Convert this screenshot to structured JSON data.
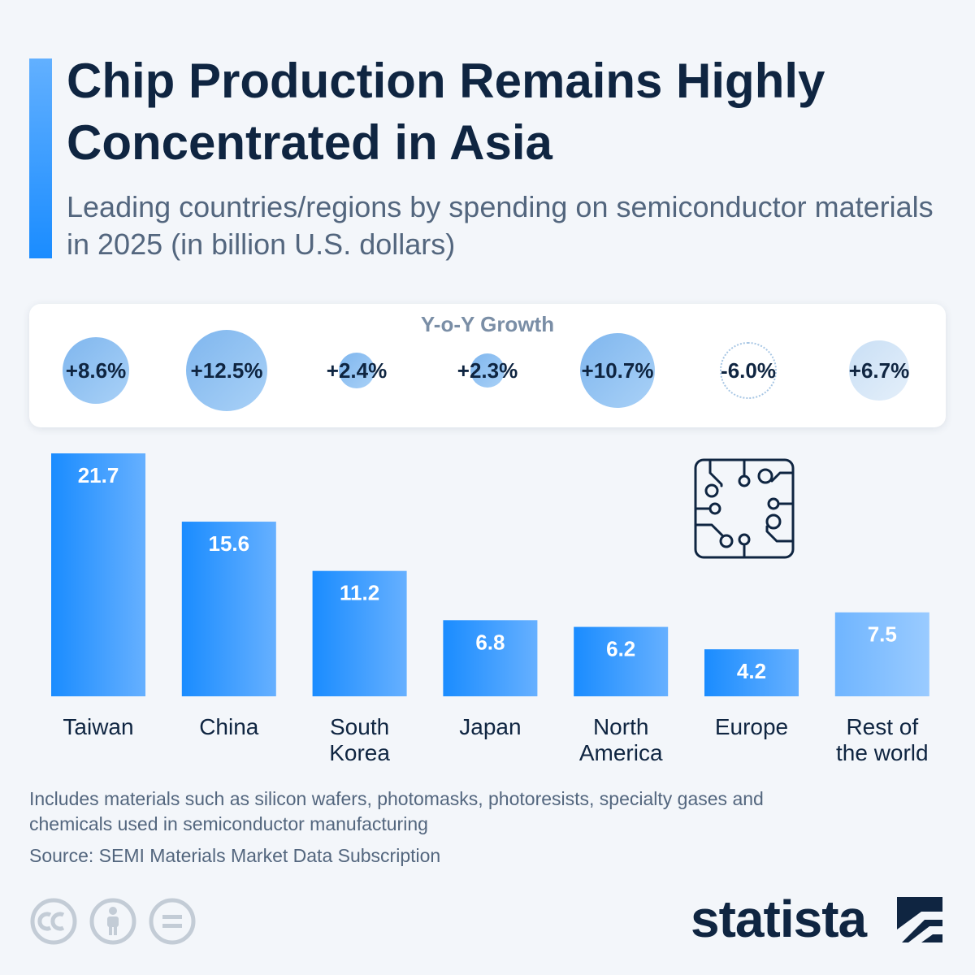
{
  "title": "Chip Production Remains Highly Concentrated in Asia",
  "subtitle": "Leading countries/regions by spending on semiconductor materials in 2025 (in billion U.S. dollars)",
  "growth": {
    "title": "Y-o-Y Growth",
    "items": [
      {
        "label": "+8.6%",
        "value": 8.6
      },
      {
        "label": "+12.5%",
        "value": 12.5
      },
      {
        "label": "+2.4%",
        "value": 2.4
      },
      {
        "label": "+2.3%",
        "value": 2.3
      },
      {
        "label": "+10.7%",
        "value": 10.7
      },
      {
        "label": "-6.0%",
        "value": -6.0
      },
      {
        "label": "+6.7%",
        "value": 6.7
      }
    ]
  },
  "chart_data": {
    "type": "bar",
    "title": "Chip Production Remains Highly Concentrated in Asia",
    "xlabel": "",
    "ylabel": "",
    "categories": [
      "Taiwan",
      "China",
      "South Korea",
      "Japan",
      "North America",
      "Europe",
      "Rest of the world"
    ],
    "category_lines": [
      [
        "Taiwan"
      ],
      [
        "China"
      ],
      [
        "South",
        "Korea"
      ],
      [
        "Japan"
      ],
      [
        "North",
        "America"
      ],
      [
        "Europe"
      ],
      [
        "Rest of",
        "the world"
      ]
    ],
    "values": [
      21.7,
      15.6,
      11.2,
      6.8,
      6.2,
      4.2,
      7.5
    ],
    "value_labels": [
      "21.7",
      "15.6",
      "11.2",
      "6.8",
      "6.2",
      "4.2",
      "7.5"
    ],
    "ylim": [
      0,
      21.7
    ],
    "grid": false,
    "legend": "none"
  },
  "colors": {
    "bar_start": "#1a8cff",
    "bar_end": "#66b0ff",
    "bar_light_start": "#6fb5ff",
    "bar_light_end": "#9acbff",
    "bar_label": "#ffffff",
    "category_label": "#0f2541",
    "title": "#0f2541",
    "subtitle": "#53667e"
  },
  "icons": {
    "chip": "circuit-chip-icon",
    "cc": "creative-commons-icon",
    "by": "attribution-person-icon",
    "nd": "no-derivatives-icon",
    "logo_mark": "statista-logo-mark"
  },
  "footer": {
    "note": "Includes materials such as silicon wafers, photomasks, photoresists, specialty gases and chemicals used in semiconductor manufacturing",
    "source": "Source: SEMI Materials Market Data Subscription",
    "logo": "statista"
  }
}
